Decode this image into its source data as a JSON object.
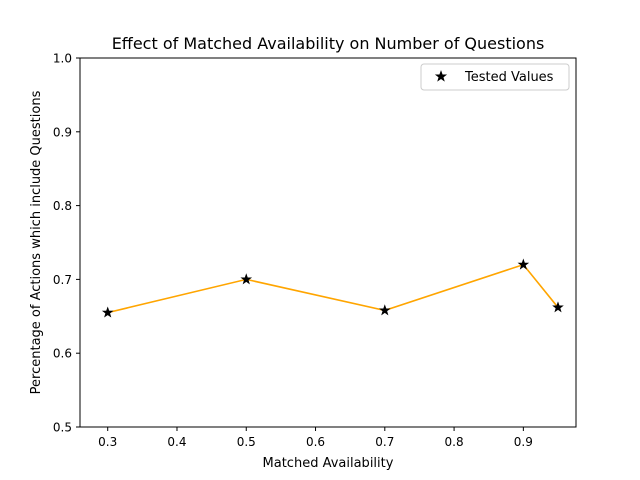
{
  "chart_data": {
    "type": "line",
    "title": "Effect of Matched Availability on Number of Questions",
    "xlabel": "Matched Availability",
    "ylabel": "Percentage of Actions which include Questions",
    "xlim": [
      0.26,
      0.976
    ],
    "ylim": [
      0.5,
      1.0
    ],
    "xticks": [
      0.3,
      0.4,
      0.5,
      0.6,
      0.7,
      0.8,
      0.9
    ],
    "xtick_labels": [
      "0.3",
      "0.4",
      "0.5",
      "0.6",
      "0.7",
      "0.8",
      "0.9"
    ],
    "yticks": [
      0.5,
      0.6,
      0.7,
      0.8,
      0.9,
      1.0
    ],
    "ytick_labels": [
      "0.5",
      "0.6",
      "0.7",
      "0.8",
      "0.9",
      "1.0"
    ],
    "grid": false,
    "legend_position": "top-right",
    "line_color": "#ffa500",
    "marker_color": "#000000",
    "marker": "star-icon",
    "x": [
      0.3,
      0.5,
      0.7,
      0.9,
      0.95
    ],
    "y": [
      0.655,
      0.7,
      0.658,
      0.72,
      0.662
    ],
    "legend_label": "Tested Values"
  }
}
